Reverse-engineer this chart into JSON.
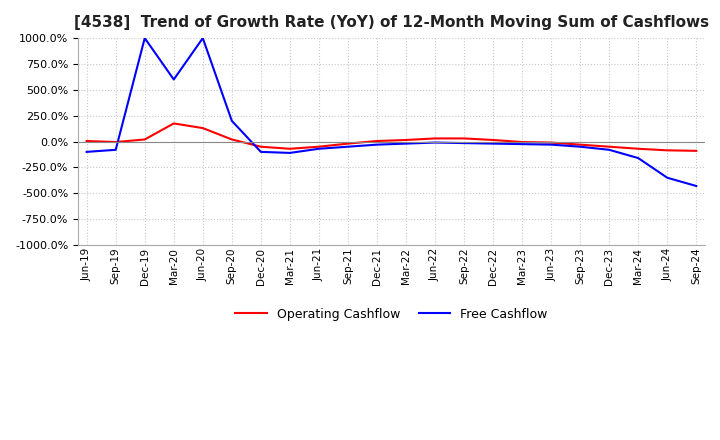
{
  "title": "[4538]  Trend of Growth Rate (YoY) of 12-Month Moving Sum of Cashflows",
  "title_fontsize": 11,
  "ylim": [
    -1000,
    1000
  ],
  "yticks": [
    -1000,
    -750,
    -500,
    -250,
    0,
    250,
    500,
    750,
    1000
  ],
  "operating_color": "#ff0000",
  "free_color": "#0000ff",
  "background_color": "#ffffff",
  "grid_color": "#c8c8c8",
  "legend_labels": [
    "Operating Cashflow",
    "Free Cashflow"
  ],
  "x_labels": [
    "Jun-19",
    "Sep-19",
    "Dec-19",
    "Mar-20",
    "Jun-20",
    "Sep-20",
    "Dec-20",
    "Mar-21",
    "Jun-21",
    "Sep-21",
    "Dec-21",
    "Mar-22",
    "Jun-22",
    "Sep-22",
    "Dec-22",
    "Mar-23",
    "Jun-23",
    "Sep-23",
    "Dec-23",
    "Mar-24",
    "Jun-24",
    "Sep-24"
  ],
  "operating_cashflow": [
    5,
    -5,
    20,
    175,
    130,
    20,
    -50,
    -70,
    -50,
    -20,
    5,
    15,
    30,
    30,
    15,
    -5,
    -10,
    -30,
    -50,
    -70,
    -85,
    -90
  ],
  "free_cashflow": [
    -100,
    -80,
    1000,
    600,
    1000,
    200,
    -100,
    -110,
    -70,
    -50,
    -30,
    -20,
    -10,
    -15,
    -20,
    -25,
    -30,
    -50,
    -80,
    -160,
    -350,
    -430
  ]
}
